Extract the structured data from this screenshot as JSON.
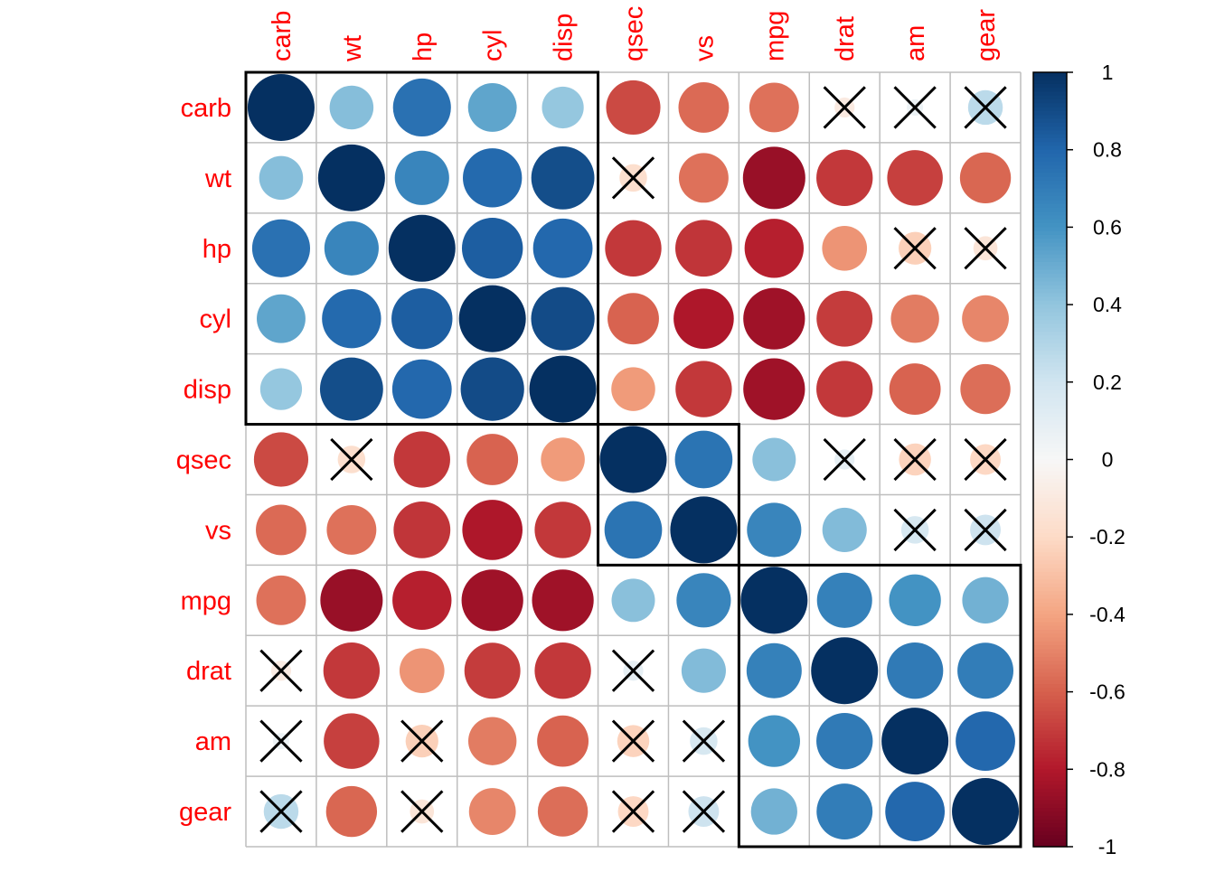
{
  "chart_data": {
    "type": "heatmap",
    "style": "corrplot circles, hierarchical-clustering order, insignificant correlations crossed",
    "variables": [
      "carb",
      "wt",
      "hp",
      "cyl",
      "disp",
      "qsec",
      "vs",
      "mpg",
      "drat",
      "am",
      "gear"
    ],
    "matrix": [
      [
        1.0,
        0.43,
        0.75,
        0.53,
        0.39,
        -0.66,
        -0.57,
        -0.55,
        -0.09,
        0.06,
        0.27
      ],
      [
        0.43,
        1.0,
        0.66,
        0.78,
        0.89,
        -0.17,
        -0.55,
        -0.87,
        -0.71,
        -0.69,
        -0.58
      ],
      [
        0.75,
        0.66,
        1.0,
        0.83,
        0.79,
        -0.71,
        -0.72,
        -0.78,
        -0.45,
        -0.24,
        -0.13
      ],
      [
        0.53,
        0.78,
        0.83,
        1.0,
        0.9,
        -0.59,
        -0.81,
        -0.85,
        -0.7,
        -0.52,
        -0.49
      ],
      [
        0.39,
        0.89,
        0.79,
        0.9,
        1.0,
        -0.43,
        -0.71,
        -0.85,
        -0.71,
        -0.59,
        -0.56
      ],
      [
        -0.66,
        -0.17,
        -0.71,
        -0.59,
        -0.43,
        1.0,
        0.74,
        0.42,
        0.09,
        -0.23,
        -0.21
      ],
      [
        -0.57,
        -0.55,
        -0.72,
        -0.81,
        -0.71,
        0.74,
        1.0,
        0.66,
        0.44,
        0.17,
        0.21
      ],
      [
        -0.55,
        -0.87,
        -0.78,
        -0.85,
        -0.85,
        0.42,
        0.66,
        1.0,
        0.68,
        0.6,
        0.48
      ],
      [
        -0.09,
        -0.71,
        -0.45,
        -0.7,
        -0.71,
        0.09,
        0.44,
        0.68,
        1.0,
        0.71,
        0.7
      ],
      [
        0.06,
        -0.69,
        -0.24,
        -0.52,
        -0.59,
        -0.23,
        0.17,
        0.6,
        0.71,
        1.0,
        0.79
      ],
      [
        0.27,
        -0.58,
        -0.13,
        -0.49,
        -0.56,
        -0.21,
        0.21,
        0.48,
        0.7,
        0.79,
        1.0
      ]
    ],
    "insignificant_pairs": [
      [
        "carb",
        "drat"
      ],
      [
        "carb",
        "am"
      ],
      [
        "carb",
        "gear"
      ],
      [
        "wt",
        "qsec"
      ],
      [
        "hp",
        "am"
      ],
      [
        "hp",
        "gear"
      ],
      [
        "qsec",
        "drat"
      ],
      [
        "qsec",
        "am"
      ],
      [
        "qsec",
        "gear"
      ],
      [
        "vs",
        "am"
      ],
      [
        "vs",
        "gear"
      ]
    ],
    "cluster_rectangles": [
      [
        "carb",
        "disp"
      ],
      [
        "qsec",
        "vs"
      ],
      [
        "mpg",
        "gear"
      ]
    ],
    "colorbar": {
      "range": [
        -1,
        1
      ],
      "tick_labels": [
        "1",
        "0.8",
        "0.6",
        "0.4",
        "0.2",
        "0",
        "-0.2",
        "-0.4",
        "-0.6",
        "-0.8",
        "-1"
      ],
      "tick_values": [
        1,
        0.8,
        0.6,
        0.4,
        0.2,
        0,
        -0.2,
        -0.4,
        -0.6,
        -0.8,
        -1
      ],
      "palette": [
        "#67001F",
        "#B2182B",
        "#D6604D",
        "#F4A582",
        "#FDDBC7",
        "#F7F7F7",
        "#D1E5F0",
        "#92C5DE",
        "#4393C3",
        "#2166AC",
        "#053061"
      ]
    },
    "label_color": "#FF0000",
    "grid_color": "#BEBEBE"
  }
}
